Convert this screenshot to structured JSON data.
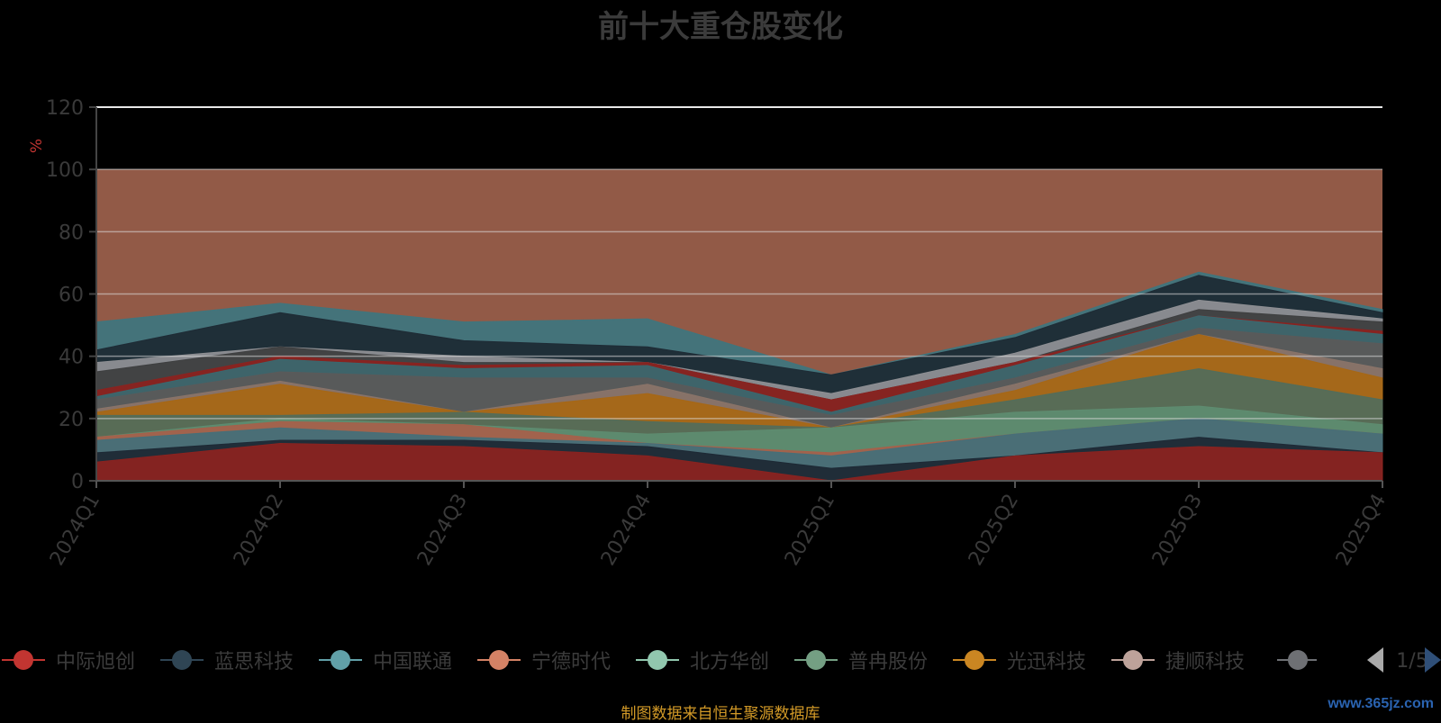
{
  "chart_data": {
    "type": "area",
    "title": "前十大重仓股变化",
    "ylabel": "%",
    "ylim": [
      0,
      120
    ],
    "yticks": [
      0,
      20,
      40,
      60,
      80,
      100,
      120
    ],
    "categories": [
      "2024Q1",
      "2024Q2",
      "2024Q3",
      "2024Q4",
      "2025Q1",
      "2025Q2",
      "2025Q3",
      "2025Q4"
    ],
    "band": {
      "from": 0,
      "to": 100,
      "color": "#925a47"
    },
    "series": [
      {
        "name": "中际旭创",
        "color": "#8a2320",
        "values": [
          6,
          12,
          11,
          8,
          0,
          8,
          11,
          9
        ]
      },
      {
        "name": "蓝思科技",
        "color": "#1d2935",
        "values": [
          9,
          13,
          13,
          11,
          4,
          8,
          14,
          9
        ]
      },
      {
        "name": "中国联通",
        "color": "#466f78",
        "values": [
          13,
          17,
          14,
          12,
          8,
          15,
          20,
          15
        ]
      },
      {
        "name": "宁德时代",
        "color": "#a4614b",
        "values": [
          14,
          19,
          18,
          12,
          9,
          15,
          20,
          15
        ]
      },
      {
        "name": "北方华创",
        "color": "#5e8c70",
        "values": [
          14,
          20,
          18,
          15,
          17,
          22,
          24,
          18
        ]
      },
      {
        "name": "普冉股份",
        "color": "#536d5a",
        "values": [
          21,
          21,
          22,
          19,
          17,
          26,
          36,
          26
        ]
      },
      {
        "name": "光迅科技",
        "color": "#a66716",
        "values": [
          22,
          31,
          22,
          28,
          17,
          29,
          47,
          33
        ]
      },
      {
        "name": "捷顺科技",
        "color": "#8a7469",
        "values": [
          23,
          32,
          22,
          31,
          17,
          31,
          47,
          36
        ]
      },
      {
        "name": "",
        "color": "#5a5a5a",
        "values": [
          26,
          35,
          33,
          33,
          21,
          33,
          49,
          44
        ]
      },
      {
        "name": "",
        "color": "#3a686f",
        "values": [
          27,
          39,
          36,
          37,
          22,
          37,
          53,
          47
        ]
      },
      {
        "name": "",
        "color": "#8a2320",
        "values": [
          29,
          40,
          37,
          38,
          26,
          38,
          53,
          48
        ]
      },
      {
        "name": "",
        "color": "#3e3f40",
        "values": [
          35,
          43,
          38,
          38,
          26,
          38,
          55,
          51
        ]
      },
      {
        "name": "",
        "color": "#8e8f93",
        "values": [
          38,
          43,
          40,
          38,
          28,
          41,
          58,
          52
        ]
      },
      {
        "name": "",
        "color": "#1e2b35",
        "values": [
          42,
          54,
          45,
          43,
          34,
          46,
          66,
          54
        ]
      },
      {
        "name": "",
        "color": "#40757d",
        "values": [
          51,
          57,
          51,
          52,
          34,
          47,
          67,
          55
        ]
      }
    ],
    "legend": {
      "position": "bottom",
      "items": [
        {
          "name": "中际旭创",
          "color": "#c23531"
        },
        {
          "name": "蓝思科技",
          "color": "#2f4554"
        },
        {
          "name": "中国联通",
          "color": "#61a0a8"
        },
        {
          "name": "宁德时代",
          "color": "#d48265"
        },
        {
          "name": "北方华创",
          "color": "#91c7ae"
        },
        {
          "name": "普冉股份",
          "color": "#749f83"
        },
        {
          "name": "光迅科技",
          "color": "#ca8622"
        },
        {
          "name": "捷顺科技",
          "color": "#bda29a"
        }
      ],
      "page_indicator": "1/5"
    }
  },
  "footer": {
    "source": "制图数据来自恒生聚源数据库",
    "watermark": "www.365jz.com"
  }
}
